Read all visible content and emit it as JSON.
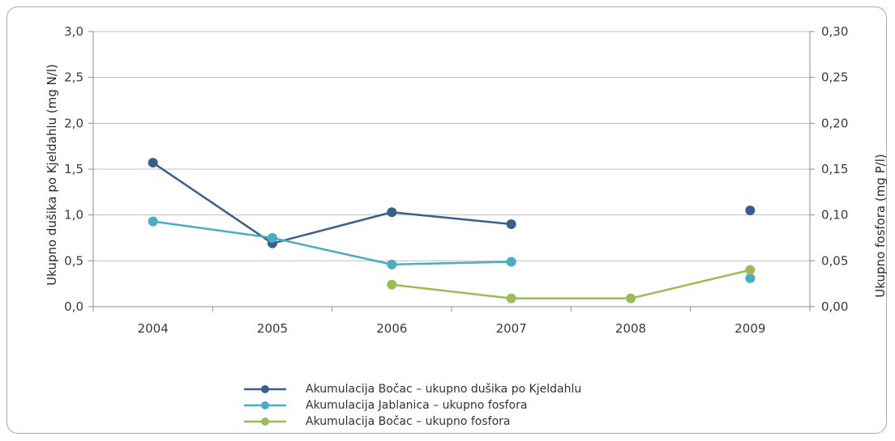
{
  "chart_data": {
    "type": "line",
    "categories": [
      "2004",
      "2005",
      "2006",
      "2007",
      "2008",
      "2009"
    ],
    "y_left": {
      "label": "Ukupno dušika po Kjeldahlu  (mg N/l)",
      "range": [
        0,
        3
      ],
      "ticks": [
        "0,0",
        "0,5",
        "1,0",
        "1,5",
        "2,0",
        "2,5",
        "3,0"
      ]
    },
    "y_right": {
      "label": "Ukupno fosfora  (mg P/l)",
      "range": [
        0,
        0.3
      ],
      "ticks": [
        "0,00",
        "0,05",
        "0,10",
        "0,15",
        "0,20",
        "0,25",
        "0,30"
      ]
    },
    "grid": "horizontal",
    "legend_position": "bottom",
    "series": [
      {
        "name": "Akumulacija Bočac – ukupno dušika po Kjeldahlu",
        "axis": "left",
        "color": "#3b5f8c",
        "values": [
          1.57,
          0.69,
          1.03,
          0.9,
          null,
          1.05
        ]
      },
      {
        "name": "Akumulacija Jablanica – ukupno fosfora",
        "axis": "right",
        "color": "#4bacc6",
        "values": [
          0.093,
          0.075,
          0.046,
          0.049,
          null,
          0.031
        ]
      },
      {
        "name": "Akumulacija Bočac – ukupno fosfora",
        "axis": "right",
        "color": "#9bbb59",
        "values": [
          null,
          null,
          0.024,
          0.009,
          0.009,
          0.04
        ]
      }
    ]
  }
}
